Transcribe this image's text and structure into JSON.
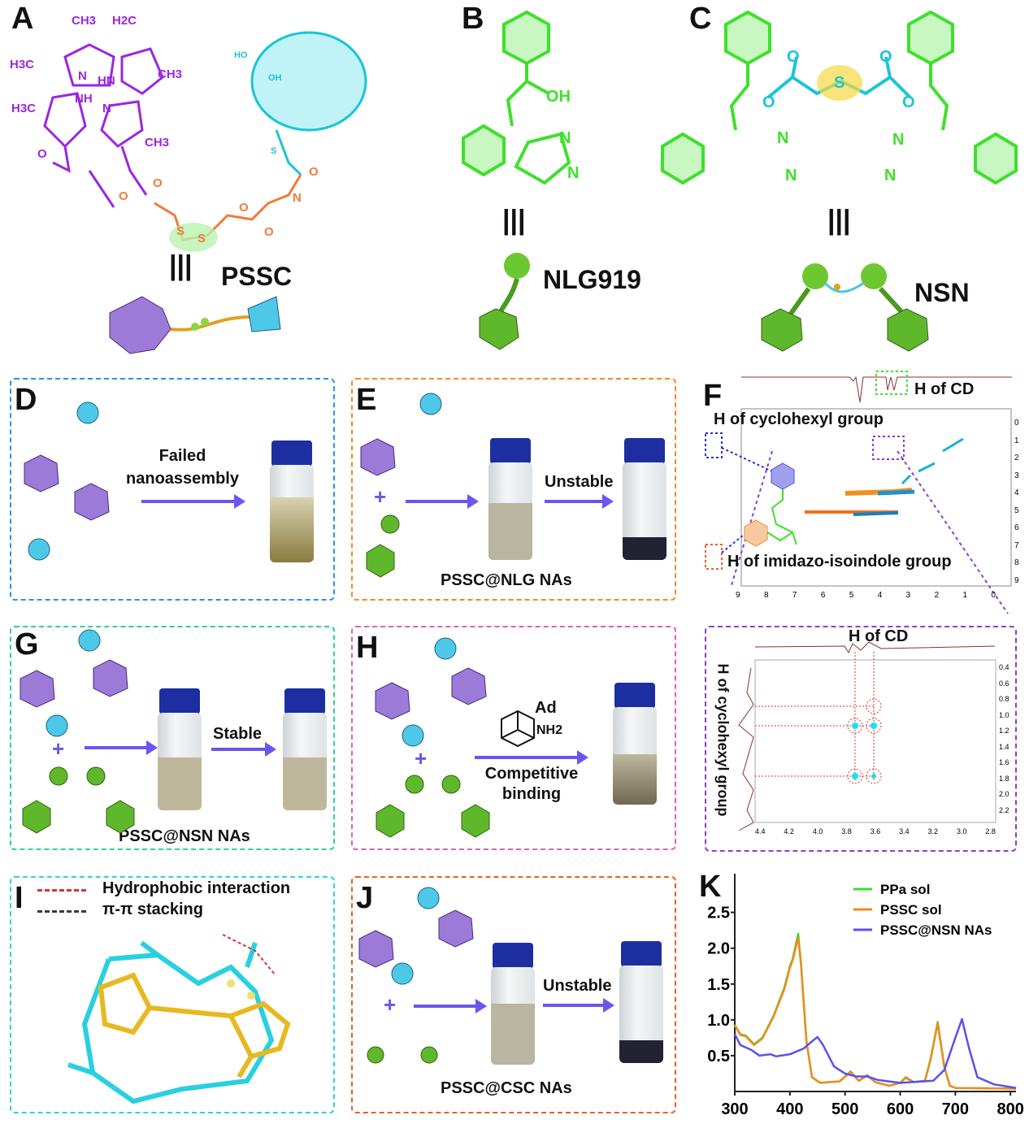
{
  "panels": {
    "A": {
      "letter": "A",
      "name": "PSSC",
      "equiv": "|||",
      "atoms": [
        "CH3",
        "H2C",
        "H3C",
        "N",
        "HN",
        "CH3",
        "H3C",
        "NH",
        "N",
        "CH3",
        "O",
        "O",
        "O",
        "S",
        "S",
        "O",
        "O",
        "N",
        "O",
        "S",
        "HO",
        "OH"
      ]
    },
    "B": {
      "letter": "B",
      "name": "NLG919",
      "equiv": "|||",
      "atoms": [
        "OH",
        "N",
        "N"
      ]
    },
    "C": {
      "letter": "C",
      "name": "NSN",
      "equiv": "|||",
      "atoms": [
        "O",
        "O",
        "S",
        "O",
        "O",
        "N",
        "N",
        "N",
        "N"
      ]
    },
    "D": {
      "letter": "D",
      "arrow_label": "Failed nanoassembly"
    },
    "E": {
      "letter": "E",
      "arrow_label": "Unstable",
      "caption": "PSSC@NLG NAs"
    },
    "F": {
      "letter": "F",
      "top_label": "H of CD",
      "left_label": "H of cyclohexyl group",
      "bottom_label": "H of imidazo-isoindole group",
      "x_ticks": [
        "9",
        "8",
        "7",
        "6",
        "5",
        "4",
        "3",
        "2",
        "1",
        "0"
      ],
      "y_ticks": [
        "0",
        "1",
        "2",
        "3",
        "4",
        "5",
        "6",
        "7",
        "8",
        "9"
      ],
      "zoom": {
        "top_label": "H of CD",
        "side_label": "H of cyclohexyl group",
        "x_ticks": [
          "4.4",
          "4.2",
          "4.0",
          "3.8",
          "3.6",
          "3.4",
          "3.2",
          "3.0",
          "2.8"
        ],
        "y_ticks": [
          "0.4",
          "0.6",
          "0.8",
          "1.0",
          "1.2",
          "1.4",
          "1.6",
          "1.8",
          "2.0",
          "2.2"
        ]
      }
    },
    "G": {
      "letter": "G",
      "arrow_label": "Stable",
      "caption": "PSSC@NSN NAs"
    },
    "H": {
      "letter": "H",
      "reagent": "Ad",
      "reagent_group": "NH2",
      "arrow_label": "Competitive binding"
    },
    "I": {
      "letter": "I",
      "legend": [
        "Hydrophobic interaction",
        "π-π stacking"
      ]
    },
    "J": {
      "letter": "J",
      "arrow_label": "Unstable",
      "caption": "PSSC@CSC NAs"
    },
    "K": {
      "letter": "K"
    }
  },
  "colors": {
    "porphyrin": "#9b27e0",
    "cd": "#19c5d6",
    "linker": "#f07c3a",
    "nlg": "#3ee02c",
    "arrow": "#6a55f0",
    "D": "#2a90e8",
    "E": "#f08a24",
    "G": "#2fd0a0",
    "H": "#e060b0",
    "I": "#30d0e0",
    "J": "#f05a28",
    "F": "#8a3fd0"
  },
  "chart_data": {
    "type": "line",
    "title": "",
    "xlabel": "",
    "ylabel": "",
    "xlim": [
      300,
      810
    ],
    "ylim": [
      0,
      2.7
    ],
    "x_ticks": [
      "300",
      "400",
      "500",
      "600",
      "700",
      "800"
    ],
    "y_ticks": [
      "0.5",
      "1.0",
      "1.5",
      "2.0",
      "2.5"
    ],
    "legend_position": "top-right",
    "grid": false,
    "series": [
      {
        "name": "PPa sol",
        "color": "#33e02a",
        "x": [
          300,
          310,
          320,
          335,
          350,
          370,
          390,
          400,
          405,
          415,
          420,
          430,
          440,
          455,
          470,
          490,
          510,
          525,
          540,
          555,
          580,
          600,
          610,
          625,
          645,
          655,
          668,
          680,
          690,
          700,
          810
        ],
        "y": [
          0.93,
          0.8,
          0.78,
          0.66,
          0.75,
          1.05,
          1.45,
          1.75,
          1.85,
          2.2,
          1.8,
          0.7,
          0.2,
          0.12,
          0.13,
          0.14,
          0.28,
          0.15,
          0.23,
          0.13,
          0.08,
          0.12,
          0.2,
          0.13,
          0.15,
          0.45,
          0.97,
          0.35,
          0.08,
          0.05,
          0.04
        ]
      },
      {
        "name": "PSSC sol",
        "color": "#f08a1c",
        "x": [
          300,
          310,
          320,
          335,
          350,
          370,
          390,
          400,
          405,
          415,
          420,
          430,
          440,
          455,
          470,
          490,
          510,
          525,
          540,
          555,
          580,
          600,
          610,
          625,
          645,
          655,
          668,
          680,
          690,
          700,
          810
        ],
        "y": [
          0.92,
          0.79,
          0.77,
          0.65,
          0.74,
          1.04,
          1.43,
          1.73,
          1.83,
          2.15,
          1.78,
          0.7,
          0.2,
          0.12,
          0.13,
          0.14,
          0.27,
          0.15,
          0.22,
          0.13,
          0.08,
          0.12,
          0.19,
          0.13,
          0.15,
          0.44,
          0.95,
          0.34,
          0.08,
          0.05,
          0.04
        ]
      },
      {
        "name": "PSSC@NSN NAs",
        "color": "#5a50f0",
        "x": [
          300,
          310,
          330,
          345,
          365,
          375,
          400,
          425,
          440,
          450,
          460,
          480,
          500,
          520,
          540,
          560,
          600,
          620,
          640,
          660,
          680,
          700,
          712,
          725,
          740,
          770,
          810
        ],
        "y": [
          0.8,
          0.65,
          0.58,
          0.5,
          0.52,
          0.49,
          0.52,
          0.6,
          0.7,
          0.76,
          0.65,
          0.35,
          0.25,
          0.21,
          0.21,
          0.16,
          0.12,
          0.13,
          0.14,
          0.15,
          0.3,
          0.75,
          1.01,
          0.6,
          0.2,
          0.1,
          0.05
        ]
      }
    ]
  }
}
